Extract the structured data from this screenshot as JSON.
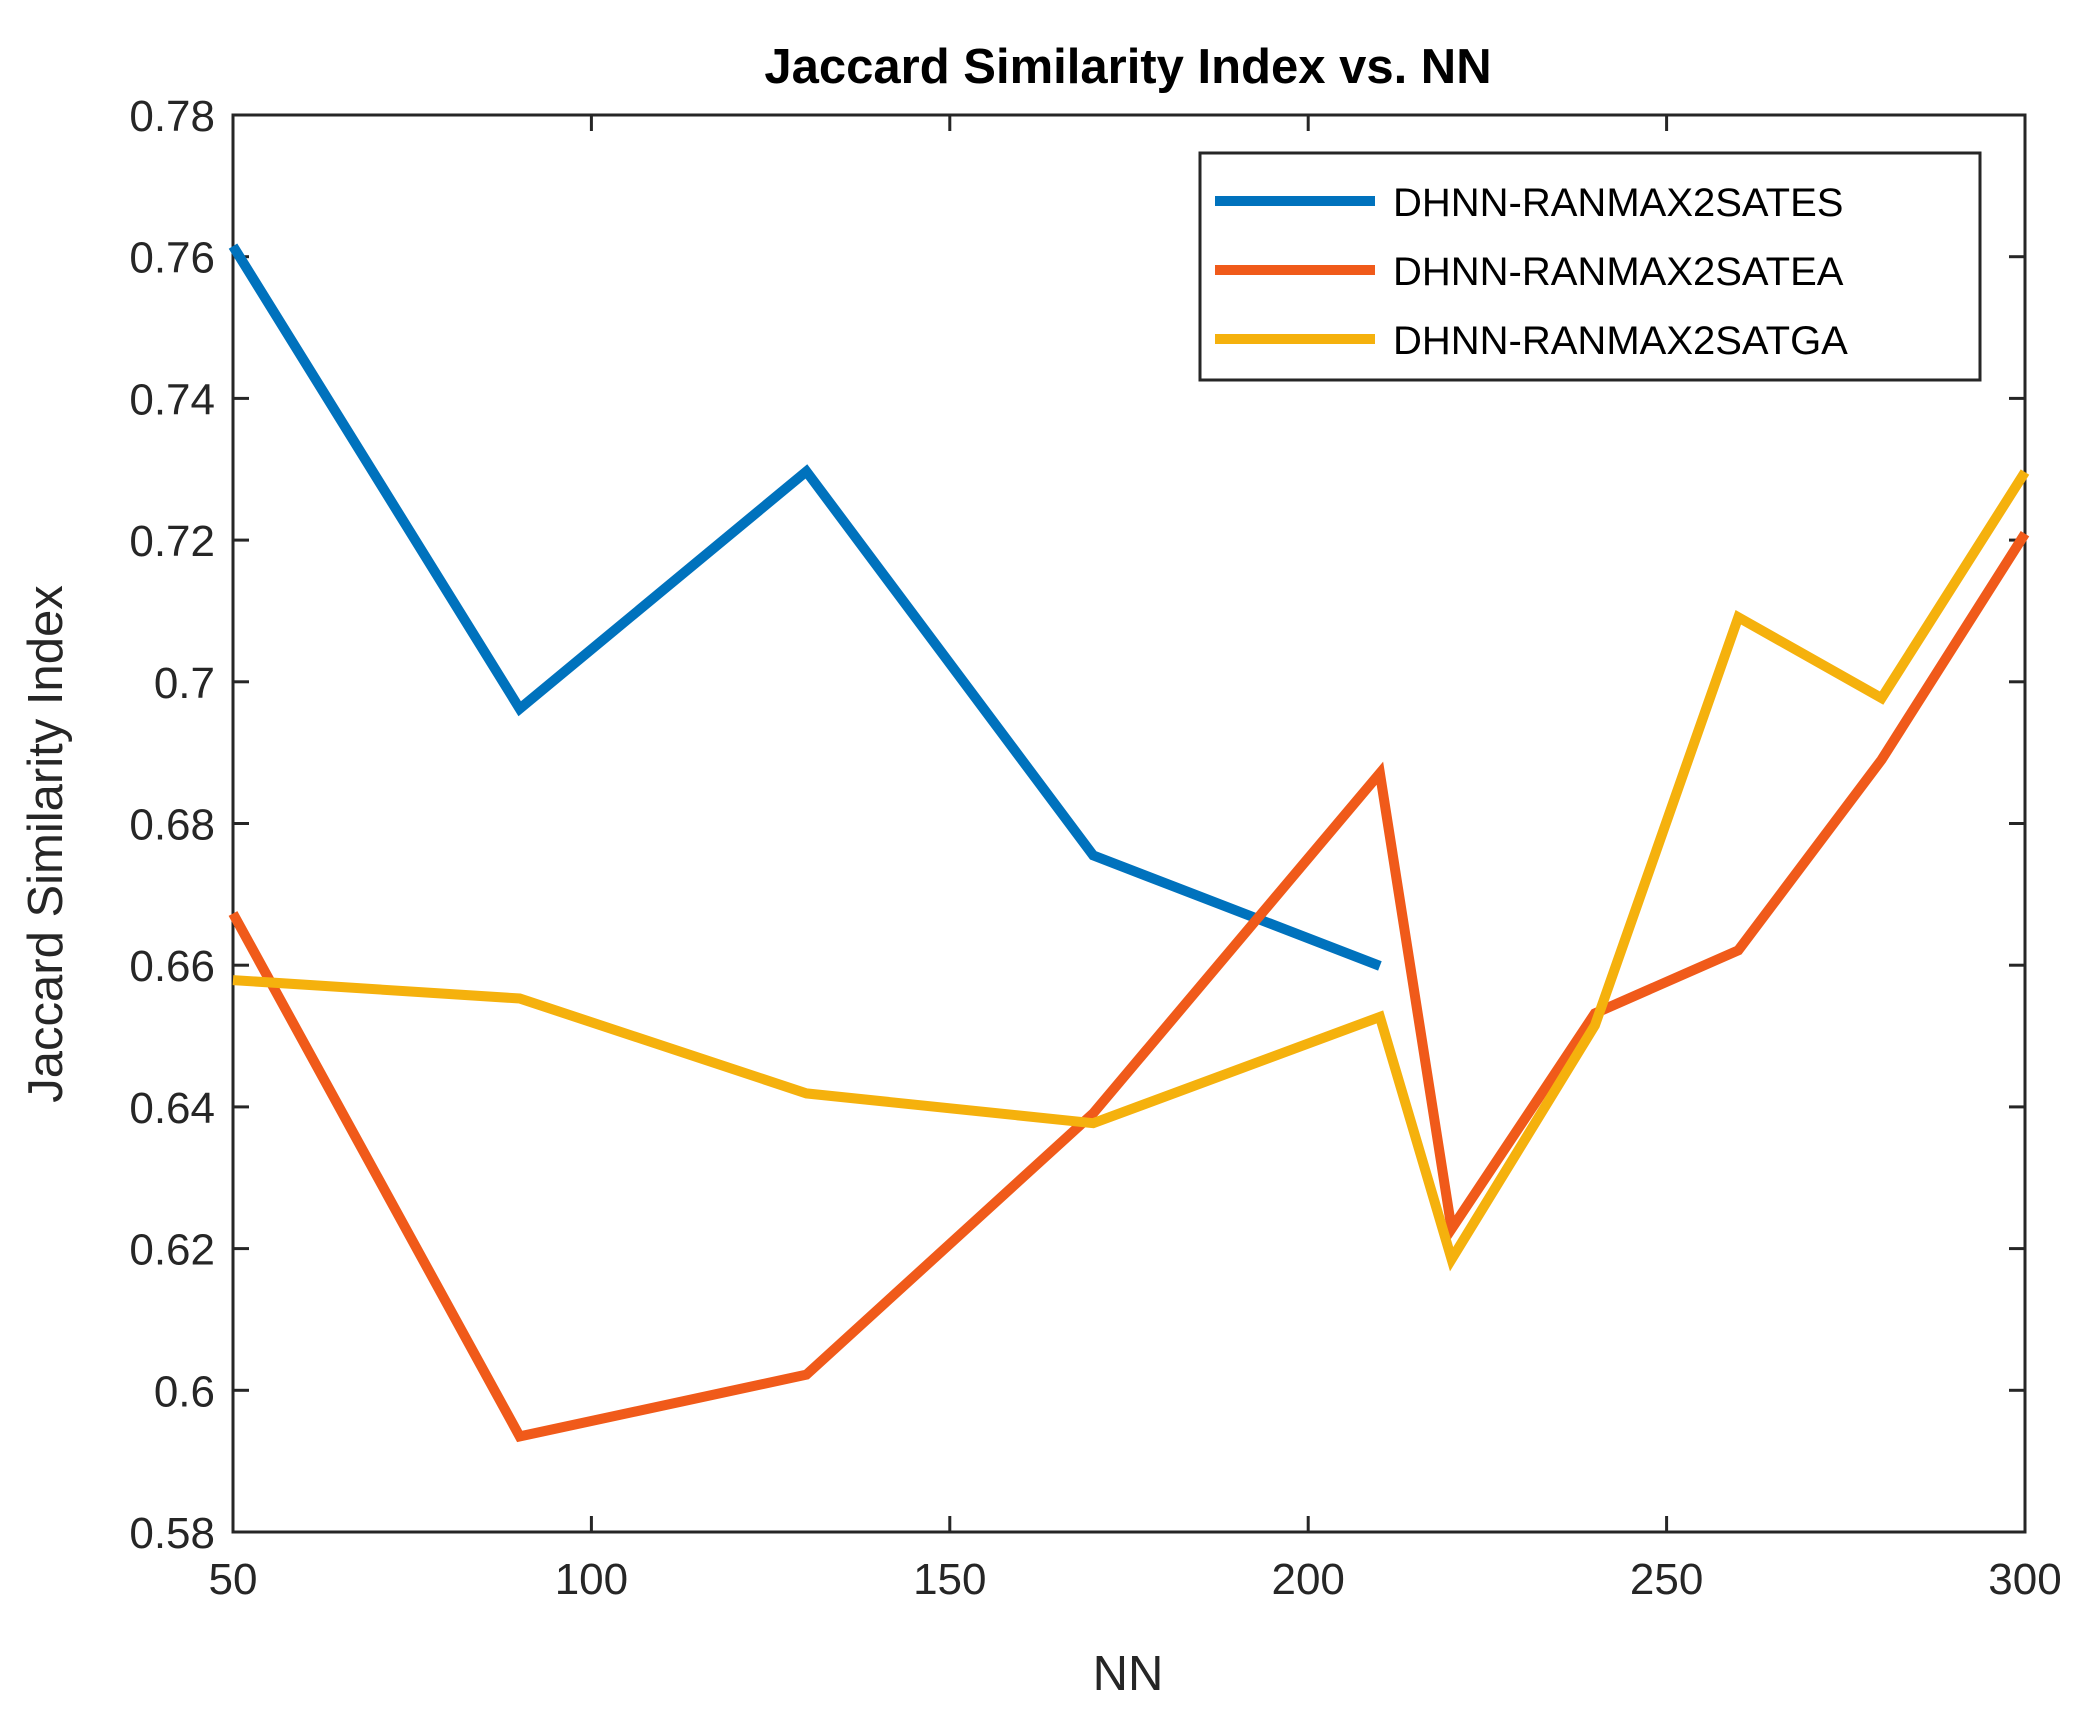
{
  "chart_data": {
    "type": "line",
    "title": "Jaccard Similarity Index vs. NN",
    "xlabel": "NN",
    "ylabel": "Jaccard Similarity Index",
    "xlim": [
      50,
      300
    ],
    "ylim": [
      0.58,
      0.78
    ],
    "xticks": [
      50,
      100,
      150,
      200,
      250,
      300
    ],
    "xtick_labels": [
      "50",
      "100",
      "150",
      "200",
      "250",
      "300"
    ],
    "yticks": [
      0.58,
      0.6,
      0.62,
      0.64,
      0.66,
      0.68,
      0.7,
      0.72,
      0.74,
      0.76,
      0.78
    ],
    "ytick_labels": [
      "0.58",
      "0.6",
      "0.62",
      "0.64",
      "0.66",
      "0.68",
      "0.7",
      "0.72",
      "0.74",
      "0.76",
      "0.78"
    ],
    "grid": false,
    "legend_position": "top-right",
    "series": [
      {
        "name": "DHNN-RANMAX2SATES",
        "color": "#0072BD",
        "x": [
          50,
          90,
          130,
          170,
          210
        ],
        "y": [
          0.7615,
          0.6962,
          0.7297,
          0.6755,
          0.6599
        ]
      },
      {
        "name": "DHNN-RANMAX2SATEA",
        "color": "#F05A1A",
        "x": [
          50,
          90,
          130,
          170,
          210,
          220,
          240,
          260,
          280,
          300
        ],
        "y": [
          0.6673,
          0.5935,
          0.6022,
          0.6391,
          0.6871,
          0.6228,
          0.6532,
          0.6621,
          0.689,
          0.7209
        ]
      },
      {
        "name": "DHNN-RANMAX2SATGA",
        "color": "#F5B10D",
        "x": [
          50,
          90,
          130,
          170,
          210,
          220,
          240,
          260,
          280,
          300
        ],
        "y": [
          0.6579,
          0.6553,
          0.6419,
          0.6377,
          0.6527,
          0.6185,
          0.6515,
          0.7091,
          0.6977,
          0.7296
        ]
      }
    ]
  }
}
